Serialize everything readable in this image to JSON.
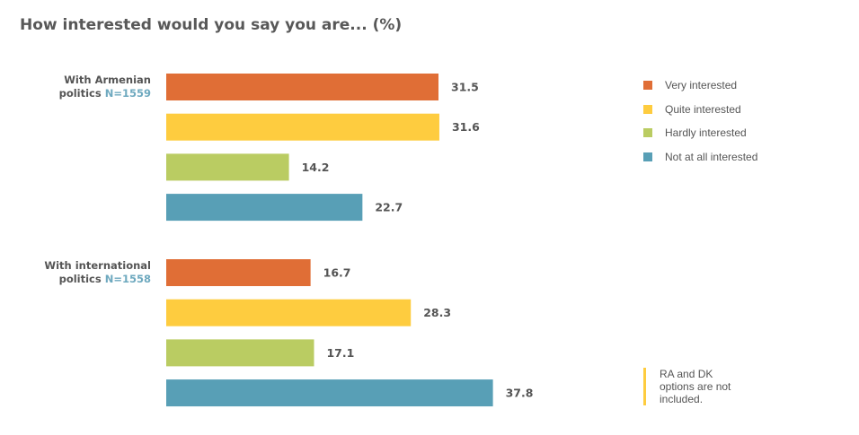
{
  "title": "How interested would you say you are... (%)",
  "legend": [
    {
      "label": "Very interested",
      "color": "#e06e36"
    },
    {
      "label": "Quite interested",
      "color": "#fecc3f"
    },
    {
      "label": "Hardly interested",
      "color": "#bacc62"
    },
    {
      "label": "Not at all interested",
      "color": "#589fb6"
    }
  ],
  "note": "RA and DK options are not included.",
  "chart_data": {
    "type": "bar",
    "orientation": "horizontal",
    "title": "How interested would you say you are... (%)",
    "series_names": [
      "Very interested",
      "Quite interested",
      "Hardly interested",
      "Not at all interested"
    ],
    "colors": [
      "#e06e36",
      "#fecc3f",
      "#bacc62",
      "#589fb6"
    ],
    "groups": [
      {
        "label_lines": [
          "With Armenian",
          "politics"
        ],
        "n_label": "N=1559",
        "values": [
          31.5,
          31.6,
          14.2,
          22.7
        ]
      },
      {
        "label_lines": [
          "With international",
          "politics"
        ],
        "n_label": "N=1558",
        "values": [
          16.7,
          28.3,
          17.1,
          37.8
        ]
      }
    ],
    "xlim": [
      0,
      100
    ],
    "grid": false,
    "legend_position": "right"
  }
}
